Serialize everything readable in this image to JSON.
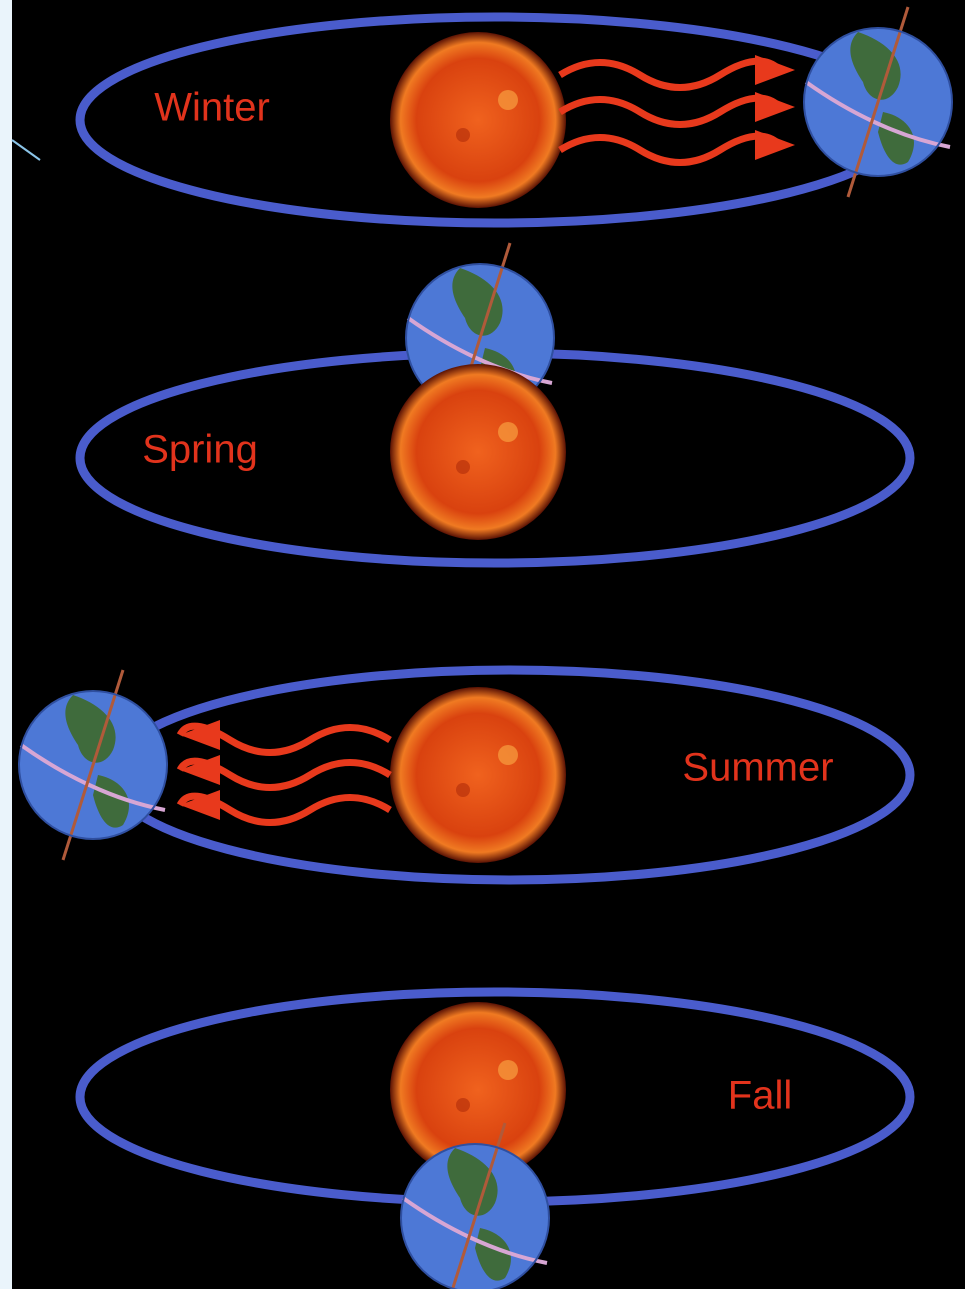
{
  "panels": [
    {
      "label": "Winter"
    },
    {
      "label": "Spring"
    },
    {
      "label": "Summer"
    },
    {
      "label": "Fall"
    }
  ]
}
